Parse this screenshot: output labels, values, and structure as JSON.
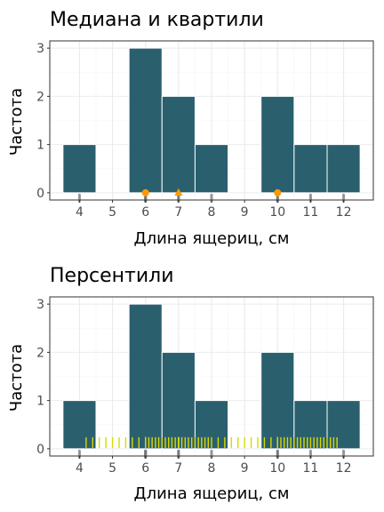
{
  "chart_data": [
    {
      "type": "bar",
      "title": "Медиана и квартили",
      "xlabel": "Длина ящериц, см",
      "ylabel": "Частота",
      "x_ticks": [
        4,
        5,
        6,
        7,
        8,
        9,
        10,
        11,
        12
      ],
      "y_ticks": [
        0,
        1,
        2,
        3
      ],
      "xlim": [
        3.1,
        12.9
      ],
      "ylim": [
        -0.15,
        3.15
      ],
      "bins": [
        {
          "x0": 3.5,
          "x1": 4.5,
          "count": 1
        },
        {
          "x0": 4.5,
          "x1": 5.5,
          "count": 0
        },
        {
          "x0": 5.5,
          "x1": 6.5,
          "count": 3
        },
        {
          "x0": 6.5,
          "x1": 7.5,
          "count": 2
        },
        {
          "x0": 7.5,
          "x1": 8.5,
          "count": 1
        },
        {
          "x0": 8.5,
          "x1": 9.5,
          "count": 0
        },
        {
          "x0": 9.5,
          "x1": 10.5,
          "count": 2
        },
        {
          "x0": 10.5,
          "x1": 11.5,
          "count": 1
        },
        {
          "x0": 11.5,
          "x1": 12.5,
          "count": 1
        }
      ],
      "observations": [
        4,
        6,
        6,
        6,
        7,
        7,
        8,
        10,
        10,
        11,
        12
      ],
      "markers": [
        {
          "x": 6,
          "shape": "circle"
        },
        {
          "x": 7,
          "shape": "triangle"
        },
        {
          "x": 10,
          "shape": "circle"
        }
      ],
      "bar_color": "#2a5f6e",
      "bar_outline": "#ffffff",
      "marker_color": "#ff9900",
      "rug_color": "#777777",
      "grid": true
    },
    {
      "type": "bar",
      "title": "Персентили",
      "xlabel": "Длина ящериц, см",
      "ylabel": "Частота",
      "x_ticks": [
        4,
        5,
        6,
        7,
        8,
        9,
        10,
        11,
        12
      ],
      "y_ticks": [
        0,
        1,
        2,
        3
      ],
      "xlim": [
        3.1,
        12.9
      ],
      "ylim": [
        -0.15,
        3.15
      ],
      "bins": [
        {
          "x0": 3.5,
          "x1": 4.5,
          "count": 1
        },
        {
          "x0": 4.5,
          "x1": 5.5,
          "count": 0
        },
        {
          "x0": 5.5,
          "x1": 6.5,
          "count": 3
        },
        {
          "x0": 6.5,
          "x1": 7.5,
          "count": 2
        },
        {
          "x0": 7.5,
          "x1": 8.5,
          "count": 1
        },
        {
          "x0": 8.5,
          "x1": 9.5,
          "count": 0
        },
        {
          "x0": 9.5,
          "x1": 10.5,
          "count": 2
        },
        {
          "x0": 10.5,
          "x1": 11.5,
          "count": 1
        },
        {
          "x0": 11.5,
          "x1": 12.5,
          "count": 1
        }
      ],
      "observations": [
        4,
        6,
        6,
        6,
        7,
        7,
        8,
        10,
        10,
        11,
        12
      ],
      "percentiles": [
        4.2,
        4.4,
        4.6,
        4.8,
        5.0,
        5.2,
        5.4,
        5.6,
        5.8,
        6.0,
        6.0,
        6.0,
        6.0,
        6.0,
        6.0,
        6.0,
        6.0,
        6.0,
        6.0,
        6.0,
        6.0,
        6.0,
        6.0,
        6.0,
        6.0,
        6.0,
        6.0,
        6.0,
        6.0,
        6.1,
        6.2,
        6.3,
        6.4,
        6.5,
        6.6,
        6.7,
        6.8,
        6.9,
        7.0,
        7.0,
        7.0,
        7.0,
        7.0,
        7.0,
        7.0,
        7.0,
        7.0,
        7.1,
        7.2,
        7.3,
        7.4,
        7.5,
        7.6,
        7.7,
        7.8,
        7.9,
        8.0,
        8.2,
        8.4,
        8.6,
        8.8,
        9.0,
        9.2,
        9.4,
        9.6,
        9.8,
        10.0,
        10.0,
        10.0,
        10.0,
        10.0,
        10.0,
        10.0,
        10.0,
        10.0,
        10.1,
        10.2,
        10.3,
        10.4,
        10.5,
        10.6,
        10.7,
        10.8,
        10.9,
        11.0,
        11.1,
        11.2,
        11.3,
        11.4,
        11.5,
        11.6,
        11.7,
        11.8
      ],
      "bar_color": "#2a5f6e",
      "bar_outline": "#ffffff",
      "percentile_color": "#d9d900",
      "rug_color": "#777777",
      "grid": true
    }
  ]
}
